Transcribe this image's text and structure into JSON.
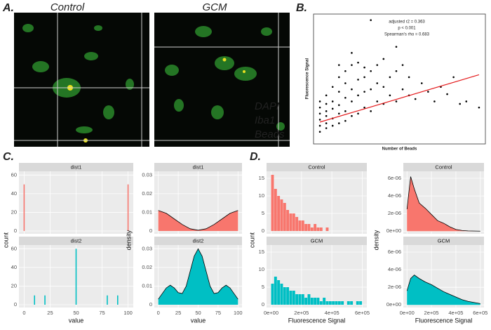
{
  "panel_labels": [
    "A.",
    "B.",
    "C.",
    "D."
  ],
  "panel_a": {
    "images": [
      "Control",
      "GCM"
    ],
    "legend": [
      {
        "name": "DAPI",
        "color": "#3a3adf"
      },
      {
        "name": "Iba1",
        "color": "#22c022"
      },
      {
        "name": "Beads",
        "color": "#e02020"
      }
    ]
  },
  "chart_data": [
    {
      "type": "bar",
      "title": "dist1",
      "x": [
        0,
        100
      ],
      "values": [
        50,
        50
      ],
      "color": "#f8766d",
      "xlim": [
        -5,
        105
      ],
      "xticks": [
        0,
        25,
        50,
        75,
        100
      ],
      "ylim": [
        -3,
        64
      ],
      "yticks": [
        0,
        20,
        40,
        60
      ],
      "ylabel": "count"
    },
    {
      "type": "bar",
      "title": "dist2",
      "x": [
        10,
        20,
        50,
        80,
        90
      ],
      "values": [
        10,
        10,
        60,
        10,
        10
      ],
      "color": "#00bfc4",
      "xlim": [
        -5,
        105
      ],
      "xticks": [
        0,
        25,
        50,
        75,
        100
      ],
      "ylim": [
        -3,
        64
      ],
      "yticks": [
        0,
        20,
        40,
        60
      ],
      "xlabel": "value"
    },
    {
      "type": "area",
      "title": "dist1",
      "x": [
        0,
        10,
        20,
        30,
        40,
        50,
        60,
        70,
        80,
        90,
        100
      ],
      "values": [
        0.011,
        0.0095,
        0.0065,
        0.0035,
        0.0012,
        0.0004,
        0.0012,
        0.0035,
        0.0065,
        0.0095,
        0.011
      ],
      "color": "#f8766d",
      "xlim": [
        -5,
        105
      ],
      "xticks": [
        0,
        25,
        50,
        75,
        100
      ],
      "ylim": [
        -0.0015,
        0.032
      ],
      "yticks": [
        0,
        0.01,
        0.02,
        0.03
      ],
      "ylabel": "density"
    },
    {
      "type": "area",
      "title": "dist2",
      "x": [
        0,
        5,
        10,
        15,
        20,
        25,
        30,
        35,
        40,
        45,
        50,
        55,
        60,
        65,
        70,
        75,
        80,
        85,
        90,
        95,
        100
      ],
      "values": [
        0.003,
        0.006,
        0.009,
        0.0105,
        0.009,
        0.0065,
        0.006,
        0.01,
        0.018,
        0.026,
        0.03,
        0.026,
        0.018,
        0.01,
        0.006,
        0.0065,
        0.009,
        0.0105,
        0.009,
        0.006,
        0.003
      ],
      "color": "#00bfc4",
      "xlim": [
        -5,
        105
      ],
      "xticks": [
        0,
        25,
        50,
        75,
        100
      ],
      "ylim": [
        -0.0015,
        0.032
      ],
      "yticks": [
        0,
        0.01,
        0.02,
        0.03
      ],
      "xlabel": "value"
    },
    {
      "type": "histogram",
      "title": "Control",
      "bins": [
        0,
        20000,
        40000,
        60000,
        80000,
        100000,
        120000,
        140000,
        160000,
        180000,
        200000,
        220000,
        240000,
        260000,
        280000,
        300000,
        320000,
        340000,
        360000,
        380000,
        400000,
        420000,
        440000,
        460000,
        480000,
        500000,
        520000,
        540000,
        560000,
        580000,
        600000
      ],
      "values": [
        16,
        12,
        10,
        9,
        8,
        6,
        5,
        5,
        4,
        3,
        3,
        2,
        2,
        1,
        2,
        1,
        1,
        0,
        1,
        0,
        0,
        0,
        0,
        0,
        0,
        0,
        0,
        0,
        0,
        0
      ],
      "color": "#f8766d",
      "xlim": [
        -30000,
        630000
      ],
      "xticks": [
        {
          "value": 0,
          "label": "0e+00"
        },
        {
          "value": 200000,
          "label": "2e+05"
        },
        {
          "value": 400000,
          "label": "4e+05"
        },
        {
          "value": 600000,
          "label": "6e+05"
        }
      ],
      "ylim": [
        -0.8,
        17
      ],
      "yticks": [
        0,
        5,
        10,
        15
      ],
      "ylabel": "count"
    },
    {
      "type": "histogram",
      "title": "GCM",
      "bins": [
        0,
        20000,
        40000,
        60000,
        80000,
        100000,
        120000,
        140000,
        160000,
        180000,
        200000,
        220000,
        240000,
        260000,
        280000,
        300000,
        320000,
        340000,
        360000,
        380000,
        400000,
        420000,
        440000,
        460000,
        480000,
        500000,
        520000,
        540000,
        560000,
        580000,
        600000
      ],
      "values": [
        6,
        8,
        7,
        6,
        5,
        5,
        4,
        4,
        3,
        3,
        3,
        2,
        3,
        2,
        2,
        2,
        1,
        2,
        1,
        1,
        1,
        1,
        1,
        1,
        0,
        1,
        1,
        0,
        1,
        1
      ],
      "color": "#00bfc4",
      "xlim": [
        -30000,
        630000
      ],
      "xticks": [
        {
          "value": 0,
          "label": "0e+00"
        },
        {
          "value": 200000,
          "label": "2e+05"
        },
        {
          "value": 400000,
          "label": "4e+05"
        },
        {
          "value": 600000,
          "label": "6e+05"
        }
      ],
      "ylim": [
        -0.8,
        17
      ],
      "yticks": [
        0,
        5,
        10,
        15
      ],
      "xlabel": "Fluorescence Signal"
    },
    {
      "type": "area",
      "title": "Control",
      "x": [
        0,
        30000,
        60000,
        100000,
        150000,
        200000,
        250000,
        300000,
        350000,
        400000,
        450000,
        500000,
        600000
      ],
      "values": [
        2.5e-06,
        6.2e-06,
        4.8e-06,
        3.2e-06,
        2.6e-06,
        1.9e-06,
        1.2e-06,
        9e-07,
        5e-07,
        2e-07,
        8e-08,
        3e-08,
        0
      ],
      "color": "#f8766d",
      "xlim": [
        -30000,
        630000
      ],
      "xticks": [
        {
          "value": 0,
          "label": "0e+00"
        },
        {
          "value": 200000,
          "label": "2e+05"
        },
        {
          "value": 400000,
          "label": "4e+05"
        },
        {
          "value": 600000,
          "label": "6e+05"
        }
      ],
      "ylim": [
        -3e-07,
        6.8e-06
      ],
      "yticks": [
        {
          "value": 0,
          "label": "0e+00"
        },
        {
          "value": 2e-06,
          "label": "2e-06"
        },
        {
          "value": 4e-06,
          "label": "4e-06"
        },
        {
          "value": 6e-06,
          "label": "6e-06"
        }
      ],
      "ylabel": "density"
    },
    {
      "type": "area",
      "title": "GCM",
      "x": [
        0,
        30000,
        60000,
        100000,
        150000,
        200000,
        250000,
        300000,
        350000,
        400000,
        450000,
        500000,
        600000
      ],
      "values": [
        1.6e-06,
        3e-06,
        3.4e-06,
        3e-06,
        2.6e-06,
        2.3e-06,
        1.9e-06,
        1.5e-06,
        1.2e-06,
        9e-07,
        6e-07,
        4e-07,
        1.5e-07
      ],
      "color": "#00bfc4",
      "xlim": [
        -30000,
        630000
      ],
      "xticks": [
        {
          "value": 0,
          "label": "0e+00"
        },
        {
          "value": 200000,
          "label": "2e+05"
        },
        {
          "value": 400000,
          "label": "4e+05"
        },
        {
          "value": 600000,
          "label": "6e+05"
        }
      ],
      "ylim": [
        -3e-07,
        6.8e-06
      ],
      "yticks": [
        {
          "value": 0,
          "label": "0e+00"
        },
        {
          "value": 2e-06,
          "label": "2e-06"
        },
        {
          "value": 4e-06,
          "label": "4e-06"
        },
        {
          "value": 6e-06,
          "label": "6e-06"
        }
      ],
      "xlabel": "Fluorescence Signal"
    },
    {
      "type": "scatter",
      "xlabel": "Number of Beads",
      "ylabel": "Fluorescence Signal",
      "annotations": [
        "adjusted r2 = 0.363",
        "p < 0.001",
        "Spearman's rho = 0.683"
      ],
      "color": "#000000",
      "xlim": [
        -1,
        26
      ],
      "ylim": [
        -0.05,
        1.02
      ],
      "x": [
        0,
        0,
        0,
        0,
        0,
        0,
        1,
        1,
        1,
        1,
        1,
        1,
        2,
        2,
        2,
        2,
        2,
        3,
        3,
        3,
        3,
        3,
        4,
        4,
        4,
        4,
        4,
        5,
        5,
        5,
        5,
        6,
        6,
        6,
        6,
        7,
        7,
        7,
        7,
        8,
        8,
        8,
        9,
        9,
        9,
        10,
        10,
        10,
        11,
        11,
        12,
        12,
        13,
        13,
        14,
        14,
        15,
        16,
        17,
        18,
        19,
        20,
        21,
        22,
        23,
        25,
        8,
        5,
        12,
        3
      ],
      "y": [
        0.05,
        0.1,
        0.15,
        0.2,
        0.25,
        0.3,
        0.08,
        0.12,
        0.18,
        0.22,
        0.28,
        0.35,
        0.1,
        0.16,
        0.24,
        0.3,
        0.42,
        0.12,
        0.2,
        0.27,
        0.38,
        0.5,
        0.14,
        0.22,
        0.33,
        0.45,
        0.55,
        0.18,
        0.3,
        0.4,
        0.6,
        0.2,
        0.35,
        0.48,
        0.62,
        0.25,
        0.38,
        0.5,
        0.58,
        0.22,
        0.4,
        0.55,
        0.3,
        0.45,
        0.6,
        0.28,
        0.42,
        0.65,
        0.35,
        0.5,
        0.3,
        0.55,
        0.4,
        0.6,
        0.35,
        0.5,
        0.32,
        0.45,
        0.38,
        0.3,
        0.42,
        0.36,
        0.5,
        0.28,
        0.3,
        0.25,
        0.97,
        0.7,
        0.75,
        0.6
      ],
      "trend": {
        "color": "#e41a1c",
        "x": [
          0,
          25
        ],
        "y": [
          0.13,
          0.52
        ]
      }
    }
  ]
}
